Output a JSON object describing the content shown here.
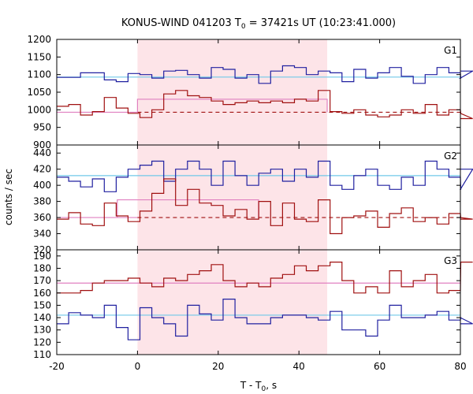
{
  "chart_data": {
    "type": "line",
    "title_main": "KONUS-WIND 041203 T",
    "title_sub": "0",
    "title_rest": " = 37421s UT (10:23:41.000)",
    "xlabel_main": "T - T",
    "xlabel_sub": "0",
    "xlabel_rest": ", s",
    "ylabel": "counts / sec",
    "xlim": [
      -20,
      80
    ],
    "x_ticks": [
      "-20",
      "0",
      "20",
      "40",
      "60",
      "80"
    ],
    "shade": [
      0,
      47
    ],
    "colors": {
      "blue": "#2020a0",
      "red": "#a01010",
      "cyan": "#70c8e8",
      "pink": "#e080c0",
      "shade": "#fde4e8"
    },
    "bin_start": -20,
    "bin_width": 2.944,
    "panels": [
      {
        "name": "G1",
        "ylim": [
          900,
          1200
        ],
        "y_ticks": [
          "900",
          "950",
          "1000",
          "1050",
          "1100",
          "1150",
          "1200"
        ],
        "blue": [
          1092,
          1092,
          1105,
          1105,
          1085,
          1080,
          1103,
          1100,
          1090,
          1110,
          1112,
          1100,
          1090,
          1120,
          1115,
          1090,
          1100,
          1075,
          1110,
          1125,
          1120,
          1100,
          1110,
          1105,
          1080,
          1115,
          1090,
          1105,
          1120,
          1095,
          1075,
          1100,
          1120,
          1105,
          1090,
          1110
        ],
        "red": [
          1010,
          1015,
          985,
          995,
          1035,
          1005,
          990,
          978,
          1000,
          1045,
          1055,
          1040,
          1035,
          1025,
          1015,
          1020,
          1025,
          1020,
          1025,
          1020,
          1030,
          1025,
          1055,
          995,
          990,
          1000,
          985,
          980,
          985,
          1000,
          990,
          1015,
          985,
          1000,
          990,
          975
        ],
        "cyan_level": 1093,
        "pink_level": 993,
        "pink_band": [
          1030,
          0,
          47
        ],
        "dashed_level": 993,
        "dashed_from": 0
      },
      {
        "name": "G2",
        "ylim": [
          320,
          450
        ],
        "y_ticks": [
          "320",
          "340",
          "360",
          "380",
          "400",
          "420",
          "440"
        ],
        "blue": [
          410,
          405,
          398,
          408,
          392,
          410,
          420,
          425,
          430,
          405,
          420,
          430,
          420,
          400,
          430,
          412,
          400,
          415,
          420,
          405,
          420,
          410,
          430,
          400,
          395,
          412,
          420,
          400,
          395,
          410,
          400,
          430,
          420,
          410,
          395,
          420
        ],
        "red": [
          358,
          366,
          352,
          350,
          378,
          362,
          355,
          368,
          390,
          408,
          375,
          395,
          378,
          375,
          362,
          370,
          358,
          380,
          350,
          378,
          358,
          355,
          382,
          340,
          360,
          362,
          368,
          348,
          365,
          372,
          355,
          360,
          352,
          365,
          360,
          358
        ],
        "cyan_level": 412,
        "pink_level": 360,
        "pink_band": [
          382,
          -5,
          30
        ],
        "dashed_level": 360,
        "dashed_from": 0
      },
      {
        "name": "G3",
        "ylim": [
          110,
          195
        ],
        "y_ticks": [
          "110",
          "120",
          "130",
          "140",
          "150",
          "160",
          "170",
          "180",
          "190"
        ],
        "blue": [
          135,
          144,
          142,
          140,
          150,
          132,
          122,
          148,
          140,
          135,
          125,
          150,
          143,
          138,
          155,
          140,
          135,
          135,
          140,
          142,
          142,
          140,
          138,
          145,
          130,
          130,
          125,
          138,
          150,
          140,
          140,
          142,
          145,
          138,
          140,
          135
        ],
        "red": [
          160,
          160,
          162,
          168,
          170,
          170,
          172,
          168,
          165,
          172,
          170,
          175,
          178,
          183,
          170,
          165,
          168,
          165,
          172,
          175,
          182,
          178,
          182,
          185,
          170,
          160,
          165,
          160,
          178,
          165,
          170,
          175,
          160,
          162,
          185,
          185
        ],
        "cyan_level": 142,
        "pink_level": 168,
        "pink_band": null,
        "dashed_level": null,
        "dashed_from": null
      }
    ]
  }
}
